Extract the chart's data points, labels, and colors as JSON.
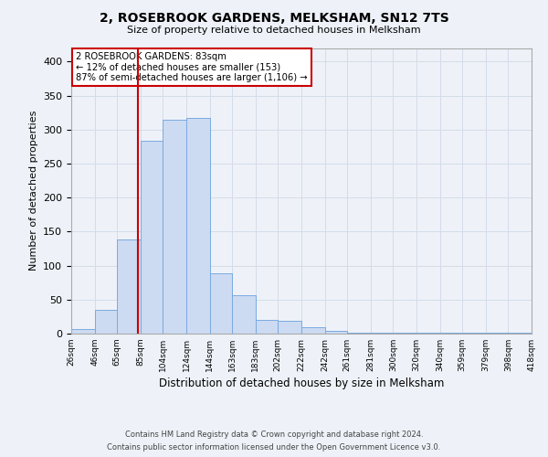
{
  "title": "2, ROSEBROOK GARDENS, MELKSHAM, SN12 7TS",
  "subtitle": "Size of property relative to detached houses in Melksham",
  "xlabel": "Distribution of detached houses by size in Melksham",
  "ylabel": "Number of detached properties",
  "bar_edges": [
    26,
    46,
    65,
    85,
    104,
    124,
    144,
    163,
    183,
    202,
    222,
    242,
    261,
    281,
    300,
    320,
    340,
    359,
    379,
    398,
    418
  ],
  "bar_heights": [
    7,
    35,
    138,
    284,
    315,
    317,
    89,
    57,
    20,
    19,
    10,
    4,
    1,
    1,
    2,
    1,
    1,
    1,
    1,
    2
  ],
  "bar_color": "#ccdaf2",
  "bar_edge_color": "#7aaae0",
  "property_line_x": 83,
  "property_line_color": "#cc0000",
  "annotation_text": "2 ROSEBROOK GARDENS: 83sqm\n← 12% of detached houses are smaller (153)\n87% of semi-detached houses are larger (1,106) →",
  "annotation_box_color": "#ffffff",
  "annotation_box_edge_color": "#cc0000",
  "ylim": [
    0,
    420
  ],
  "yticks": [
    0,
    50,
    100,
    150,
    200,
    250,
    300,
    350,
    400
  ],
  "grid_color": "#d4dce8",
  "background_color": "#eef2f8",
  "footer_line1": "Contains HM Land Registry data © Crown copyright and database right 2024.",
  "footer_line2": "Contains public sector information licensed under the Open Government Licence v3.0."
}
